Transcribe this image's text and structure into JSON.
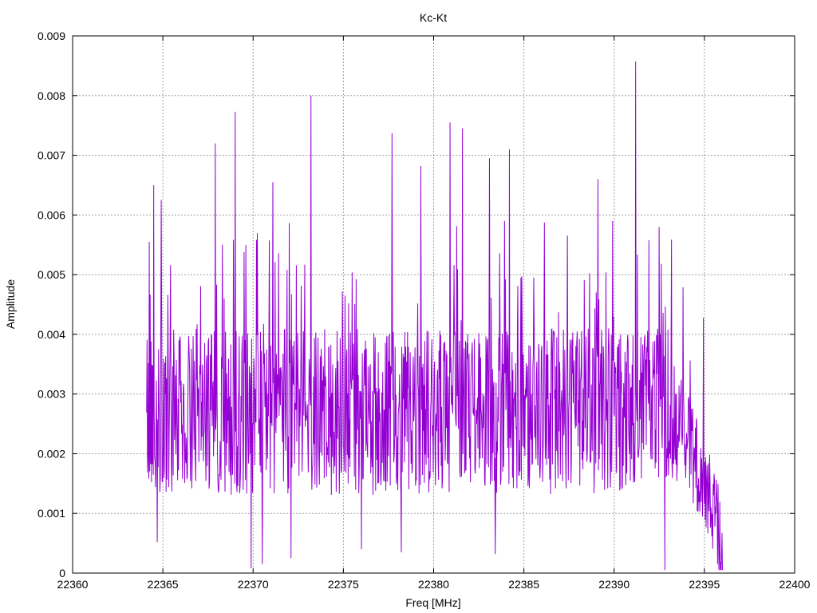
{
  "chart_data": {
    "type": "line",
    "title": "Kc-Kt",
    "xlabel": "Freq [MHz]",
    "ylabel": "Amplitude",
    "xlim": [
      22360,
      22400
    ],
    "ylim": [
      0,
      0.009
    ],
    "x_ticks": [
      22360,
      22365,
      22370,
      22375,
      22380,
      22385,
      22390,
      22395,
      22400
    ],
    "x_tick_labels": [
      "22360",
      "22365",
      "22370",
      "22375",
      "22380",
      "22385",
      "22390",
      "22395",
      "22400"
    ],
    "y_ticks": [
      0,
      0.001,
      0.002,
      0.003,
      0.004,
      0.005,
      0.006,
      0.007,
      0.008,
      0.009
    ],
    "y_tick_labels": [
      "0",
      "0.001",
      "0.002",
      "0.003",
      "0.004",
      "0.005",
      "0.006",
      "0.007",
      "0.008",
      "0.009"
    ],
    "grid": true,
    "legend": "none",
    "series": [
      {
        "color": "#9400d3",
        "x_range": [
          22364.1,
          22396.0
        ],
        "notable_peaks": [
          {
            "x": 22364.5,
            "y": 0.0065
          },
          {
            "x": 22364.9,
            "y": 0.00625
          },
          {
            "x": 22367.9,
            "y": 0.0072
          },
          {
            "x": 22368.3,
            "y": 0.0055
          },
          {
            "x": 22369.0,
            "y": 0.00773
          },
          {
            "x": 22371.1,
            "y": 0.00655
          },
          {
            "x": 22373.2,
            "y": 0.008
          },
          {
            "x": 22377.7,
            "y": 0.00737
          },
          {
            "x": 22379.3,
            "y": 0.00682
          },
          {
            "x": 22380.9,
            "y": 0.00755
          },
          {
            "x": 22381.6,
            "y": 0.00745
          },
          {
            "x": 22383.1,
            "y": 0.00695
          },
          {
            "x": 22384.2,
            "y": 0.0071
          },
          {
            "x": 22389.1,
            "y": 0.0066
          },
          {
            "x": 22391.2,
            "y": 0.00857
          },
          {
            "x": 22392.5,
            "y": 0.0058
          }
        ],
        "notable_minima": [
          {
            "x": 22364.7,
            "y": 0.00052
          },
          {
            "x": 22369.9,
            "y": 8e-05
          },
          {
            "x": 22370.5,
            "y": 0.00015
          },
          {
            "x": 22372.1,
            "y": 0.00025
          },
          {
            "x": 22376.0,
            "y": 0.0004
          },
          {
            "x": 22378.2,
            "y": 0.00035
          },
          {
            "x": 22383.4,
            "y": 0.00032
          },
          {
            "x": 22392.8,
            "y": 5e-05
          },
          {
            "x": 22395.8,
            "y": 5e-05
          },
          {
            "x": 22396.0,
            "y": 5e-05
          }
        ]
      }
    ]
  }
}
